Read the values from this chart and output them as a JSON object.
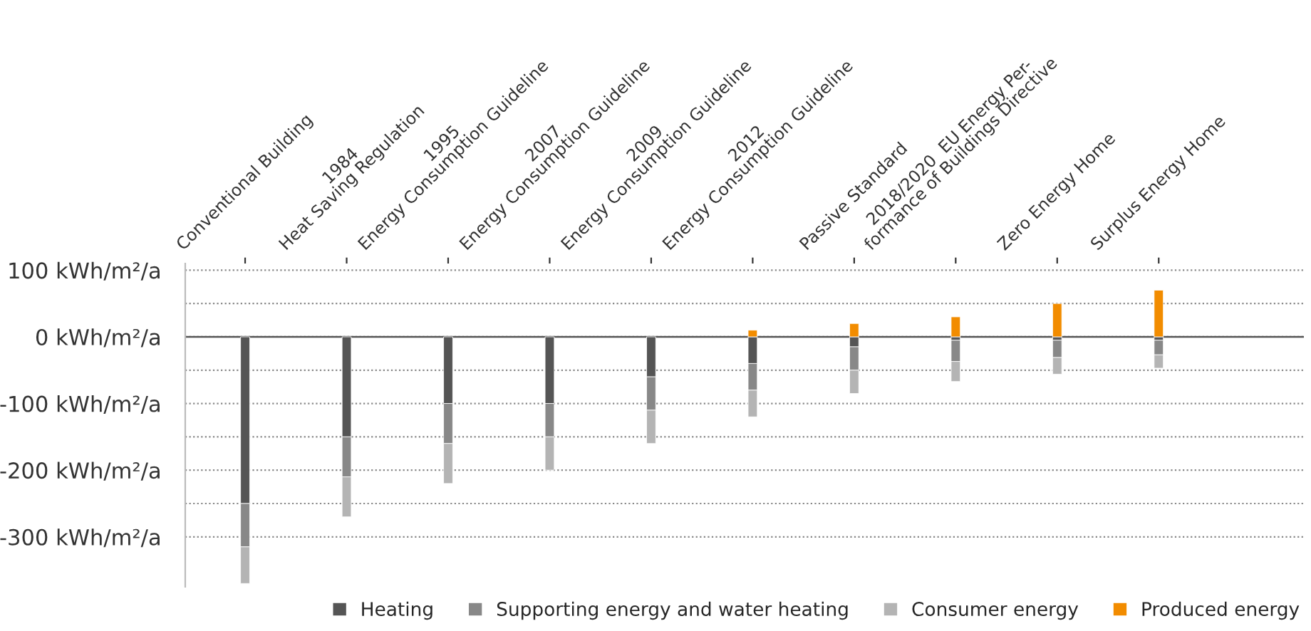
{
  "chart_data": {
    "type": "bar",
    "stacked": true,
    "categories": [
      "Conventional Building",
      "1984\nHeat Saving Regulation",
      "1995\nEnergy Consumption Guideline",
      "2007\nEnergy Consumption Guideline",
      "2009\nEnergy Consumption Guideline",
      "2012\nEnergy Consumption Guideline",
      "Passive Standard",
      "2018/2020  EU Energy Per-\nformance of Buildings Directive",
      "Zero Energy Home",
      "Surplus Energy Home"
    ],
    "series": [
      {
        "name": "Heating",
        "color": "#555555",
        "values": [
          -250,
          -150,
          -100,
          -100,
          -60,
          -40,
          -15,
          -5,
          -5,
          -5
        ]
      },
      {
        "name": "Supporting energy and water heating",
        "color": "#888888",
        "values": [
          -65,
          -60,
          -60,
          -50,
          -50,
          -40,
          -35,
          -32,
          -26,
          -22
        ]
      },
      {
        "name": "Consumer energy",
        "color": "#b4b4b4",
        "values": [
          -55,
          -60,
          -60,
          -50,
          -50,
          -40,
          -35,
          -30,
          -25,
          -20
        ]
      },
      {
        "name": "Produced energy",
        "color": "#f28c00",
        "values": [
          null,
          null,
          null,
          null,
          null,
          10,
          20,
          30,
          50,
          70
        ]
      }
    ],
    "ylim": [
      -375,
      110
    ],
    "yticks": [
      {
        "value": -300,
        "label": "-300 kWh/m²/a"
      },
      {
        "value": -250,
        "label": null
      },
      {
        "value": -200,
        "label": "-200 kWh/m²/a"
      },
      {
        "value": -150,
        "label": null
      },
      {
        "value": -100,
        "label": "-100 kWh/m²/a"
      },
      {
        "value": -50,
        "label": null
      },
      {
        "value": 0,
        "label": "0 kWh/m²/a"
      },
      {
        "value": 50,
        "label": null
      },
      {
        "value": 100,
        "label": "100 kWh/m²/a"
      }
    ],
    "grid": "y",
    "legend": "bottom right",
    "ref_lines": [
      {
        "axis": "y",
        "value": 0,
        "color": "#555555",
        "line_style": "solid"
      }
    ]
  }
}
